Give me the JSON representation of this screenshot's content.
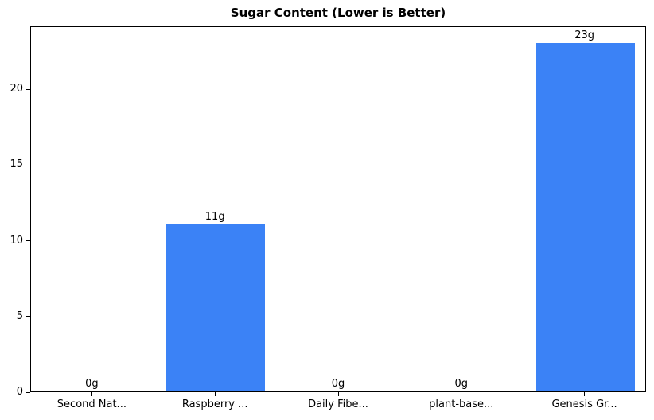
{
  "title": "Sugar Content (Lower is Better)",
  "chart_data": {
    "type": "bar",
    "title": "Sugar Content (Lower is Better)",
    "categories": [
      "Second Nat...",
      "Raspberry ...",
      "Daily Fibe...",
      "plant-base...",
      "Genesis Gr..."
    ],
    "values": [
      0,
      11,
      0,
      0,
      23
    ],
    "bar_labels": [
      "0g",
      "11g",
      "0g",
      "0g",
      "23g"
    ],
    "xlabel": "",
    "ylabel": "",
    "ylim": [
      0,
      24.15
    ],
    "yticks": [
      0,
      5,
      10,
      15,
      20
    ],
    "bar_color": "#3b82f6",
    "axis_color": "#000000",
    "text_color": "#000000",
    "grid": false,
    "legend_position": "none"
  }
}
